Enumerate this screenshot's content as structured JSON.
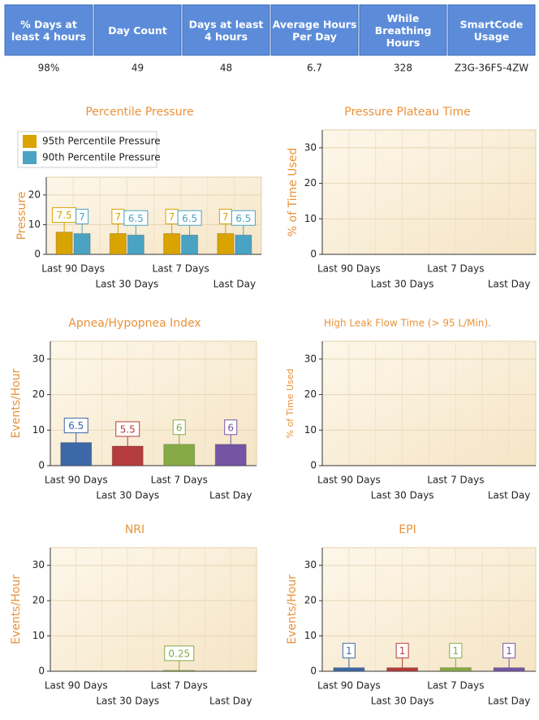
{
  "table": {
    "headers": [
      "% Days at least 4 hours",
      "Day Count",
      "Days at least 4 hours",
      "Average Hours Per Day",
      "While Breathing Hours",
      "SmartCode Usage"
    ],
    "rows": [
      [
        "98%",
        "49",
        "48",
        "6.7",
        "328",
        "Z3G-36F5-4ZW"
      ]
    ]
  },
  "chart_data": [
    {
      "type": "bar",
      "title": "Percentile Pressure",
      "ylabel": "Pressure",
      "categories": [
        "Last 90 Days",
        "Last 30 Days",
        "Last 7 Days",
        "Last Day"
      ],
      "series": [
        {
          "name": "95th Percentile Pressure",
          "color": "#d9a300",
          "values": [
            7.5,
            7,
            7,
            7
          ]
        },
        {
          "name": "90th Percentile Pressure",
          "color": "#4aa3c2",
          "values": [
            7,
            6.5,
            6.5,
            6.5
          ]
        }
      ],
      "ylim": [
        0,
        26
      ],
      "yticks": [
        0,
        10,
        20
      ],
      "grid": true,
      "legend": "top-left"
    },
    {
      "type": "bar",
      "title": "Pressure Plateau Time",
      "ylabel": "% of Time Used",
      "categories": [
        "Last 90 Days",
        "Last 30 Days",
        "Last 7 Days",
        "Last Day"
      ],
      "ylim": [
        0,
        35
      ],
      "yticks": [
        0,
        10,
        20,
        30
      ],
      "grid": true
    },
    {
      "type": "bar",
      "title": "Apnea/Hypopnea Index",
      "ylabel": "Events/Hour",
      "categories": [
        "Last 90 Days",
        "Last 30 Days",
        "Last 7 Days",
        "Last Day"
      ],
      "values": [
        6.5,
        5.5,
        6,
        6
      ],
      "colors": [
        "#3d68a8",
        "#b43c3c",
        "#86aa45",
        "#7455a4"
      ],
      "ylim": [
        0,
        35
      ],
      "yticks": [
        0,
        10,
        20,
        30
      ],
      "grid": true
    },
    {
      "type": "bar",
      "title": "High Leak Flow Time (> 95 L/Min).",
      "ylabel": "% of Time Used",
      "categories": [
        "Last 90 Days",
        "Last 30 Days",
        "Last 7 Days",
        "Last Day"
      ],
      "ylim": [
        0,
        35
      ],
      "yticks": [
        0,
        10,
        20,
        30
      ],
      "grid": true
    },
    {
      "type": "bar",
      "title": "NRI",
      "ylabel": "Events/Hour",
      "categories": [
        "Last 90 Days",
        "Last 30 Days",
        "Last 7 Days",
        "Last Day"
      ],
      "values": [
        null,
        null,
        0.25,
        null
      ],
      "colors": [
        "#3d68a8",
        "#b43c3c",
        "#86aa45",
        "#7455a4"
      ],
      "ylim": [
        0,
        35
      ],
      "yticks": [
        0,
        10,
        20,
        30
      ],
      "grid": true
    },
    {
      "type": "bar",
      "title": "EPI",
      "ylabel": "Events/Hour",
      "categories": [
        "Last 90 Days",
        "Last 30 Days",
        "Last 7 Days",
        "Last Day"
      ],
      "values": [
        1,
        1,
        1,
        1
      ],
      "colors": [
        "#3d68a8",
        "#b43c3c",
        "#86aa45",
        "#7455a4"
      ],
      "ylim": [
        0,
        35
      ],
      "yticks": [
        0,
        10,
        20,
        30
      ],
      "grid": true
    }
  ]
}
